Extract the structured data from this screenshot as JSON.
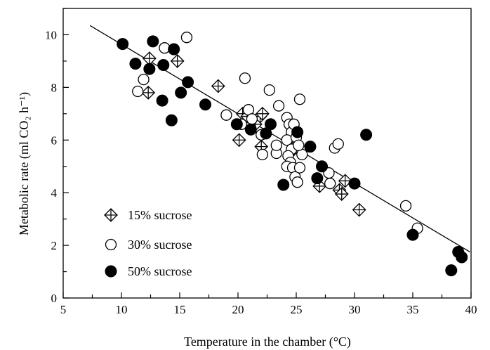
{
  "chart_data": {
    "type": "scatter",
    "xlabel": "Temperature in the chamber (°C)",
    "ylabel": "Metabolic rate (ml CO₂ h⁻¹)",
    "xlim": [
      5,
      40
    ],
    "ylim": [
      0,
      11
    ],
    "xticks": [
      "5",
      "10",
      "15",
      "20",
      "25",
      "30",
      "35",
      "40"
    ],
    "yticks": [
      "0",
      "2",
      "4",
      "6",
      "8",
      "10"
    ],
    "grid": false,
    "legend_position": "bottom-left",
    "series": [
      {
        "name": "15% sucrose",
        "marker": "crossed-diamond",
        "points": [
          [
            12.4,
            9.1
          ],
          [
            14.8,
            9.0
          ],
          [
            12.3,
            7.8
          ],
          [
            18.3,
            8.05
          ],
          [
            20.4,
            7.0
          ],
          [
            20.8,
            6.9
          ],
          [
            21.5,
            6.6
          ],
          [
            21.9,
            6.9
          ],
          [
            22.1,
            7.0
          ],
          [
            20.1,
            6.0
          ],
          [
            22.0,
            5.75
          ],
          [
            24.8,
            5.65
          ],
          [
            25.1,
            5.85
          ],
          [
            27.0,
            4.25
          ],
          [
            28.7,
            4.1
          ],
          [
            28.9,
            3.95
          ],
          [
            29.2,
            4.45
          ],
          [
            30.4,
            3.35
          ]
        ]
      },
      {
        "name": "30% sucrose",
        "marker": "open-circle",
        "points": [
          [
            15.6,
            9.9
          ],
          [
            13.7,
            9.5
          ],
          [
            11.9,
            8.3
          ],
          [
            11.4,
            7.85
          ],
          [
            20.6,
            8.35
          ],
          [
            22.7,
            7.9
          ],
          [
            25.3,
            7.55
          ],
          [
            19.0,
            6.95
          ],
          [
            20.3,
            6.6
          ],
          [
            20.9,
            7.15
          ],
          [
            21.2,
            6.8
          ],
          [
            22.0,
            6.2
          ],
          [
            22.1,
            5.45
          ],
          [
            23.3,
            5.5
          ],
          [
            23.3,
            5.8
          ],
          [
            23.5,
            7.3
          ],
          [
            24.2,
            6.85
          ],
          [
            24.4,
            6.6
          ],
          [
            24.6,
            6.3
          ],
          [
            24.2,
            6.0
          ],
          [
            24.6,
            5.65
          ],
          [
            24.3,
            5.4
          ],
          [
            24.5,
            5.15
          ],
          [
            24.2,
            5.0
          ],
          [
            24.7,
            4.95
          ],
          [
            24.9,
            4.6
          ],
          [
            25.1,
            4.4
          ],
          [
            25.3,
            4.95
          ],
          [
            25.5,
            5.45
          ],
          [
            24.8,
            6.6
          ],
          [
            25.0,
            6.1
          ],
          [
            25.2,
            5.8
          ],
          [
            27.8,
            4.75
          ],
          [
            27.9,
            4.35
          ],
          [
            28.3,
            5.7
          ],
          [
            28.6,
            5.85
          ],
          [
            34.4,
            3.5
          ],
          [
            35.4,
            2.65
          ]
        ]
      },
      {
        "name": "50% sucrose",
        "marker": "filled-circle",
        "points": [
          [
            10.1,
            9.65
          ],
          [
            12.7,
            9.75
          ],
          [
            14.5,
            9.45
          ],
          [
            11.2,
            8.9
          ],
          [
            12.4,
            8.7
          ],
          [
            13.6,
            8.85
          ],
          [
            15.7,
            8.2
          ],
          [
            13.5,
            7.5
          ],
          [
            15.1,
            7.8
          ],
          [
            14.3,
            6.75
          ],
          [
            17.2,
            7.35
          ],
          [
            19.9,
            6.6
          ],
          [
            21.1,
            6.4
          ],
          [
            22.4,
            6.25
          ],
          [
            22.8,
            6.6
          ],
          [
            25.1,
            6.3
          ],
          [
            26.2,
            5.75
          ],
          [
            27.2,
            5.0
          ],
          [
            26.8,
            4.55
          ],
          [
            23.9,
            4.3
          ],
          [
            30.0,
            4.35
          ],
          [
            31.0,
            6.2
          ],
          [
            35.0,
            2.4
          ],
          [
            38.3,
            1.05
          ],
          [
            38.9,
            1.75
          ],
          [
            39.2,
            1.55
          ]
        ]
      }
    ],
    "regression_line": {
      "x": [
        7.3,
        39.9
      ],
      "y": [
        10.35,
        1.75
      ]
    }
  }
}
